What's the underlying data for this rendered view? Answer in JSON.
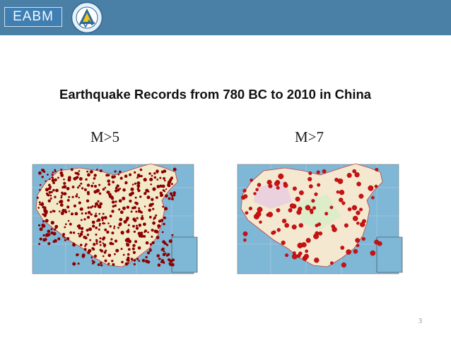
{
  "header": {
    "logo_text": "EABM"
  },
  "slide": {
    "title": "Earthquake Records from 780 BC to 2010 in China",
    "label_left": "M>5",
    "label_right": "M>7",
    "page_number": "3"
  }
}
